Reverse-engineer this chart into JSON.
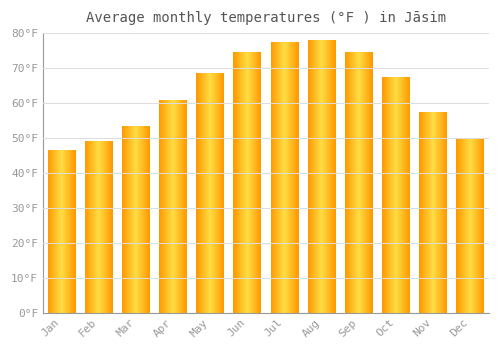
{
  "title": "Average monthly temperatures (°F ) in Jāsim",
  "months": [
    "Jan",
    "Feb",
    "Mar",
    "Apr",
    "May",
    "Jun",
    "Jul",
    "Aug",
    "Sep",
    "Oct",
    "Nov",
    "Dec"
  ],
  "values": [
    46.5,
    49.0,
    53.5,
    61.0,
    68.5,
    74.5,
    77.5,
    78.0,
    74.5,
    67.5,
    57.5,
    50.0
  ],
  "bar_color": "#FFA500",
  "bar_highlight": "#FFD050",
  "ylim": [
    0,
    80
  ],
  "ytick_step": 10,
  "background_color": "#FFFFFF",
  "plot_bg_color": "#FFFFFF",
  "grid_color": "#DDDDDD",
  "title_fontsize": 10,
  "tick_fontsize": 8,
  "tick_color": "#999999",
  "spine_color": "#999999"
}
